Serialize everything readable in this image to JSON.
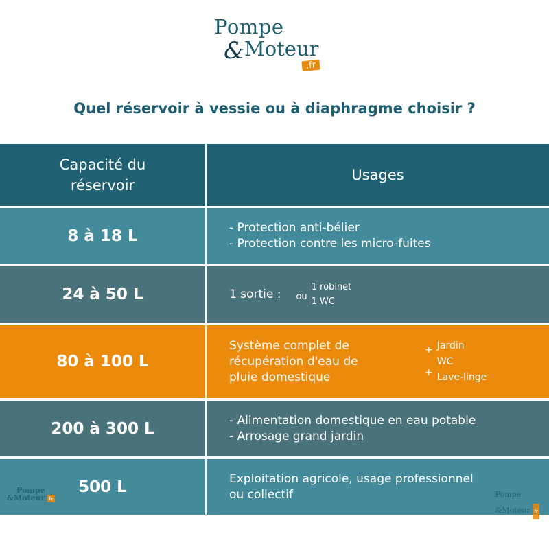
{
  "logo": {
    "line1": "Pompe",
    "amp": "&",
    "line2": "Moteur",
    "tld": ".fr"
  },
  "title": "Quel réservoir à vessie ou à diaphragme choisir ?",
  "table": {
    "headers": {
      "capacity": "Capacité du réservoir",
      "usage": "Usages"
    },
    "rows": [
      {
        "capacity": "8 à 18 L",
        "usages": [
          "- Protection anti-bélier",
          "- Protection contre les micro-fuites"
        ]
      },
      {
        "capacity": "24 à 50 L",
        "lead": "1 sortie :",
        "or": "ou",
        "options": [
          "1 robinet",
          "1 WC"
        ]
      },
      {
        "capacity": "80 à 100 L",
        "usages": [
          "Système complet de",
          "récupération d'eau de",
          "pluie domestique"
        ],
        "plus": "+",
        "options": [
          "Jardin",
          "WC",
          "Lave-linge"
        ]
      },
      {
        "capacity": "200 à 300 L",
        "usages": [
          "- Alimentation domestique en eau potable",
          "- Arrosage grand jardin"
        ]
      },
      {
        "capacity": "500 L",
        "usages": [
          "Exploitation agricole, usage professionnel",
          "ou collectif"
        ]
      }
    ]
  },
  "colors": {
    "header": "#1f6173",
    "row_light": "#438a9b",
    "row_dark": "#4a727a",
    "accent": "#ec8a0c"
  }
}
